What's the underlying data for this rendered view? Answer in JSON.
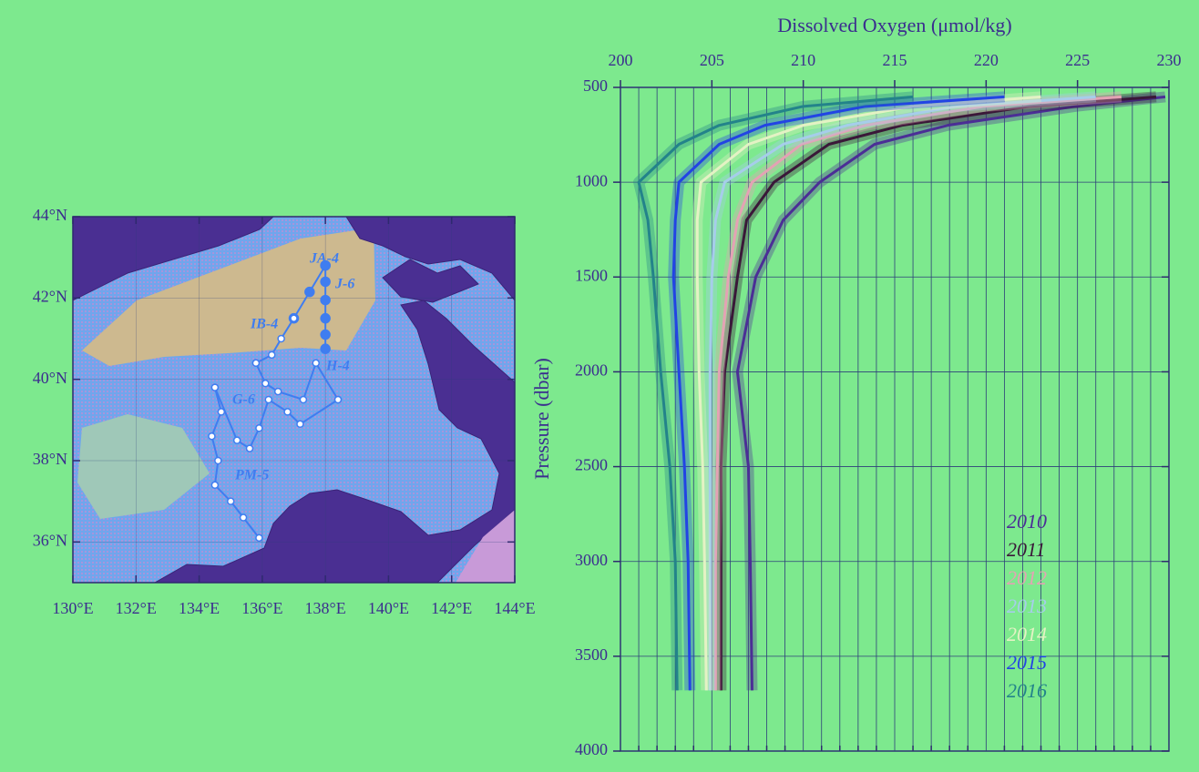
{
  "map": {
    "xlim": [
      130,
      144
    ],
    "ylim": [
      35,
      44
    ],
    "xticks": [
      {
        "value": 130,
        "label": "130°E"
      },
      {
        "value": 132,
        "label": "132°E"
      },
      {
        "value": 134,
        "label": "134°E"
      },
      {
        "value": 136,
        "label": "136°E"
      },
      {
        "value": 138,
        "label": "138°E"
      },
      {
        "value": 140,
        "label": "140°E"
      },
      {
        "value": 142,
        "label": "142°E"
      },
      {
        "value": 144,
        "label": "144°E"
      }
    ],
    "yticks": [
      {
        "value": 36,
        "label": "36°N"
      },
      {
        "value": 38,
        "label": "38°N"
      },
      {
        "value": 40,
        "label": "40°N"
      },
      {
        "value": 42,
        "label": "42°N"
      },
      {
        "value": 44,
        "label": "44°N"
      }
    ],
    "station_labels": [
      "JA-4",
      "J-6",
      "IB-4",
      "H-4",
      "G-6",
      "PM-5"
    ],
    "track_color": "#3f7df0",
    "tracks": [
      {
        "filled": true,
        "lon": [
          138,
          138,
          138,
          138,
          138,
          138
        ],
        "lat": [
          42.8,
          42.4,
          41.95,
          41.5,
          41.1,
          40.75
        ]
      },
      {
        "filled": true,
        "lon": [
          138,
          137.5,
          137
        ],
        "lat": [
          42.8,
          42.15,
          41.5
        ]
      },
      {
        "filled": false,
        "lon": [
          137,
          136.6,
          136.3,
          135.8
        ],
        "lat": [
          41.5,
          41.0,
          40.6,
          40.4
        ]
      },
      {
        "filled": false,
        "lon": [
          135.8,
          136.1,
          136.5,
          137.3,
          137.7,
          138.4
        ],
        "lat": [
          40.4,
          39.9,
          39.7,
          39.5,
          40.4,
          39.5
        ]
      },
      {
        "filled": false,
        "lon": [
          134.5,
          134.7,
          134.4,
          134.6,
          134.5,
          135.0,
          135.4,
          135.9
        ],
        "lat": [
          39.8,
          39.2,
          38.6,
          38.0,
          37.4,
          37.0,
          36.6,
          36.1
        ]
      },
      {
        "filled": false,
        "lon": [
          134.5,
          135.2,
          135.6,
          135.9,
          136.2,
          136.8,
          137.2,
          138.4
        ],
        "lat": [
          39.8,
          38.5,
          38.3,
          38.8,
          39.5,
          39.2,
          38.9,
          39.5
        ]
      }
    ]
  },
  "chart_data": {
    "type": "line",
    "title": "Dissolved Oxygen (μmol/kg)",
    "y_label": "Pressure (dbar)",
    "xlim": [
      200,
      230
    ],
    "xticks": [
      200,
      205,
      210,
      215,
      220,
      225,
      230
    ],
    "xminorticks": [
      201,
      202,
      203,
      204,
      206,
      207,
      208,
      209,
      211,
      212,
      213,
      214,
      216,
      217,
      218,
      219,
      221,
      222,
      223,
      224,
      226,
      227,
      228,
      229
    ],
    "ylim": [
      500,
      4000
    ],
    "yticks": [
      500,
      1000,
      1500,
      2000,
      2500,
      3000,
      3500,
      4000
    ],
    "y_reversed": true,
    "grid": true,
    "legend": "lower right",
    "y": [
      550,
      600,
      700,
      800,
      1000,
      1200,
      1500,
      2000,
      2500,
      3000,
      3680
    ],
    "series": [
      {
        "name": "2010",
        "color": "#4b2e96",
        "values": [
          229.8,
          224.9,
          217.9,
          213.9,
          210.9,
          208.9,
          207.4,
          206.4,
          207,
          207.1,
          207.2
        ]
      },
      {
        "name": "2011",
        "color": "#3a1838",
        "values": [
          229.3,
          222.4,
          215.4,
          211.4,
          208.4,
          206.9,
          206.4,
          205.7,
          205.5,
          205.5,
          205.5
        ]
      },
      {
        "name": "2012",
        "color": "#e4a2b4",
        "values": [
          227.4,
          219.9,
          213.4,
          209.9,
          207.2,
          206.4,
          205.9,
          205.4,
          205.3,
          205.2,
          205.2
        ]
      },
      {
        "name": "2013",
        "color": "#a6cdea",
        "values": [
          226,
          218.4,
          212.4,
          208.9,
          205.7,
          205.2,
          205,
          204.9,
          204.9,
          204.9,
          204.9
        ]
      },
      {
        "name": "2014",
        "color": "#e4f2c4",
        "values": [
          223,
          216,
          210,
          207,
          204.4,
          204.2,
          204.2,
          204.3,
          204.5,
          204.6,
          204.7
        ]
      },
      {
        "name": "2015",
        "color": "#2244e4",
        "values": [
          221,
          213.4,
          207.9,
          205.4,
          203.2,
          203,
          202.9,
          203.2,
          203.5,
          203.7,
          203.8
        ]
      },
      {
        "name": "2016",
        "color": "#23838a",
        "values": [
          216,
          210,
          205.4,
          203.2,
          201,
          201.5,
          201.8,
          202.2,
          202.7,
          203,
          203.1
        ]
      }
    ]
  }
}
